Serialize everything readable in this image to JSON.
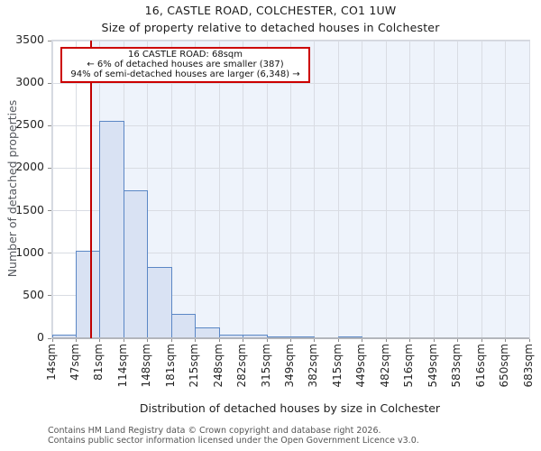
{
  "header": {
    "title": "16, CASTLE ROAD, COLCHESTER, CO1 1UW",
    "subtitle": "Size of property relative to detached houses in Colchester"
  },
  "chart_data": {
    "type": "bar",
    "title": "16, CASTLE ROAD, COLCHESTER, CO1 1UW",
    "subtitle": "Size of property relative to detached houses in Colchester",
    "xlabel": "Distribution of detached houses by size in Colchester",
    "ylabel": "Number of detached properties",
    "bin_edges_sqm": [
      14,
      47,
      81,
      114,
      148,
      181,
      215,
      248,
      282,
      315,
      349,
      382,
      415,
      449,
      482,
      516,
      549,
      583,
      616,
      650,
      683
    ],
    "x_tick_labels": [
      "14sqm",
      "47sqm",
      "81sqm",
      "114sqm",
      "148sqm",
      "181sqm",
      "215sqm",
      "248sqm",
      "282sqm",
      "315sqm",
      "349sqm",
      "382sqm",
      "415sqm",
      "449sqm",
      "482sqm",
      "516sqm",
      "549sqm",
      "583sqm",
      "616sqm",
      "650sqm",
      "683sqm"
    ],
    "values": [
      40,
      1030,
      2560,
      1740,
      840,
      285,
      125,
      45,
      40,
      15,
      8,
      0,
      10,
      0,
      0,
      0,
      0,
      0,
      0,
      0
    ],
    "ylim": [
      0,
      3500
    ],
    "y_ticks": [
      0,
      500,
      1000,
      1500,
      2000,
      2500,
      3000,
      3500
    ],
    "grid": true,
    "legend": null,
    "marker": {
      "value_sqm": 68,
      "color": "#c00000"
    },
    "shaded_region": {
      "from_sqm": 68,
      "to_sqm": 683,
      "color": "#eef3fb"
    },
    "annotation": {
      "line1": "16 CASTLE ROAD: 68sqm",
      "line2": "← 6% of detached houses are smaller (387)",
      "line3": "94% of semi-detached houses are larger (6,348) →"
    },
    "colors": {
      "bar_fill": "#d9e2f3",
      "bar_edge": "#5b87c5",
      "grid": "#d9dce3",
      "marker": "#c00000",
      "annotation_border": "#cc0000"
    }
  },
  "footer": {
    "line1": "Contains HM Land Registry data © Crown copyright and database right 2026.",
    "line2": "Contains public sector information licensed under the Open Government Licence v3.0."
  }
}
